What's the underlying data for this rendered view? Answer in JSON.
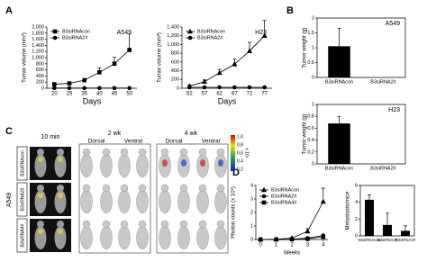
{
  "chart_data": [
    {
      "type": "line",
      "panel": "A",
      "title": "A549",
      "xlabel": "Days",
      "ylabel": "Tumor volume (mm³)",
      "categories": [
        "20",
        "25",
        "35",
        "40",
        "45",
        "50"
      ],
      "ylim": [
        0,
        2000
      ],
      "yticks": [
        0,
        200,
        400,
        600,
        800,
        {
          "value": 1000,
          "label": "1,000"
        },
        {
          "value": 1200,
          "label": "1,200"
        },
        {
          "value": 1400,
          "label": "1,400"
        },
        {
          "value": 1600,
          "label": "1,600"
        },
        {
          "value": 1800,
          "label": "1,800"
        },
        {
          "value": 2000,
          "label": "2,000"
        }
      ],
      "legend": "upper left",
      "series": [
        {
          "name": "B3siRNAcon",
          "color": "#000000",
          "marker": "square",
          "values": [
            130,
            160,
            260,
            520,
            800,
            1250
          ],
          "errors": [
            20,
            30,
            60,
            150,
            220,
            520
          ]
        },
        {
          "name": "B3siRNA2#",
          "color": "#000000",
          "marker": "circle",
          "values": [
            5,
            5,
            5,
            5,
            5,
            5
          ]
        }
      ]
    },
    {
      "type": "line",
      "title": "H23",
      "xlabel": "Days",
      "ylabel": "Tumor volume (mm³)",
      "categories": [
        "52",
        "57",
        "62",
        "67",
        "72",
        "77"
      ],
      "ylim": [
        0,
        1400
      ],
      "yticks": [
        0,
        200,
        400,
        600,
        800,
        {
          "value": 1000,
          "label": "1,000"
        },
        {
          "value": 1200,
          "label": "1,200"
        },
        {
          "value": 1400,
          "label": "1,400"
        }
      ],
      "legend": "upper left",
      "series": [
        {
          "name": "B3siRNAcon",
          "color": "#000000",
          "marker": "triangle",
          "values": [
            50,
            150,
            350,
            550,
            850,
            1200
          ],
          "errors": [
            20,
            40,
            80,
            120,
            200,
            350
          ]
        },
        {
          "name": "B3siRNA2#",
          "color": "#000000",
          "marker": "circle",
          "values": [
            20,
            20,
            20,
            20,
            20,
            20
          ]
        }
      ]
    },
    {
      "type": "bar",
      "panel": "B",
      "title": "A549",
      "ylabel": "Tumor weight (g)",
      "categories": [
        "B3siRNAcon",
        "B3siRNA2#"
      ],
      "values": [
        1.05,
        0
      ],
      "errors": [
        0.6,
        0
      ],
      "color": "#000000",
      "ylim": [
        0,
        2
      ],
      "yticks": [
        0,
        0.5,
        1,
        1.5,
        2
      ]
    },
    {
      "type": "bar",
      "title": "H23",
      "ylabel": "Tumor weight (g)",
      "categories": [
        "B3siRNAcon",
        "B3siRNA2#"
      ],
      "values": [
        0.68,
        0
      ],
      "errors": [
        0.12,
        0
      ],
      "color": "#000000",
      "ylim": [
        0,
        1
      ],
      "yticks": [
        0,
        0.2,
        0.4,
        0.6,
        0.8,
        1
      ]
    },
    {
      "type": "line",
      "panel": "D",
      "xlabel": "Weeks",
      "ylabel": "Photon counts (x 10⁶)",
      "x": [
        0,
        1,
        2,
        3,
        4
      ],
      "xlim": [
        -0.3,
        4.3
      ],
      "xticks": [
        0,
        1,
        2,
        3,
        4
      ],
      "ylim": [
        0,
        4
      ],
      "yticks": [
        0,
        1,
        2,
        3,
        4
      ],
      "legend": "upper left",
      "series": [
        {
          "name": "B3siRNAcon",
          "color": "#000000",
          "marker": "triangle",
          "values": [
            0,
            0.02,
            0.1,
            0.6,
            2.8
          ],
          "errors": [
            0,
            0,
            0.05,
            0.2,
            1.0
          ]
        },
        {
          "name": "B3siRNA2#",
          "color": "#000000",
          "marker": "circle",
          "values": [
            0,
            0,
            0.02,
            0.1,
            0.3
          ]
        },
        {
          "name": "B3siRNA4#",
          "color": "#000000",
          "marker": "square",
          "values": [
            0,
            0,
            0.01,
            0.05,
            0.2
          ]
        }
      ]
    },
    {
      "type": "bar",
      "ylabel": "Metastasis/mice",
      "categories": [
        "B3siRNAcon",
        "B3siRNA2#",
        "B3siRNA4#"
      ],
      "values": [
        4.3,
        1.3,
        0.6
      ],
      "errors": [
        0.6,
        1.4,
        0.6
      ],
      "color": "#000000",
      "ylim": [
        0,
        6
      ],
      "yticks": [
        0,
        2,
        4,
        6
      ]
    }
  ],
  "panel_c": {
    "label": "C",
    "columns": [
      "10 min",
      "2 wk",
      "4 wk"
    ],
    "views": [
      "Dorsal",
      "Ventral",
      "Dorsal",
      "Ventral"
    ],
    "rows": [
      "B3siRNAcon",
      "B3siRNA2#",
      "B3siRNA4#"
    ],
    "cell_line": "A549",
    "scale": [
      "1.0",
      "0.8",
      "0.6",
      "0.4",
      "0.2"
    ],
    "scale_unit": "x 10⁶"
  }
}
